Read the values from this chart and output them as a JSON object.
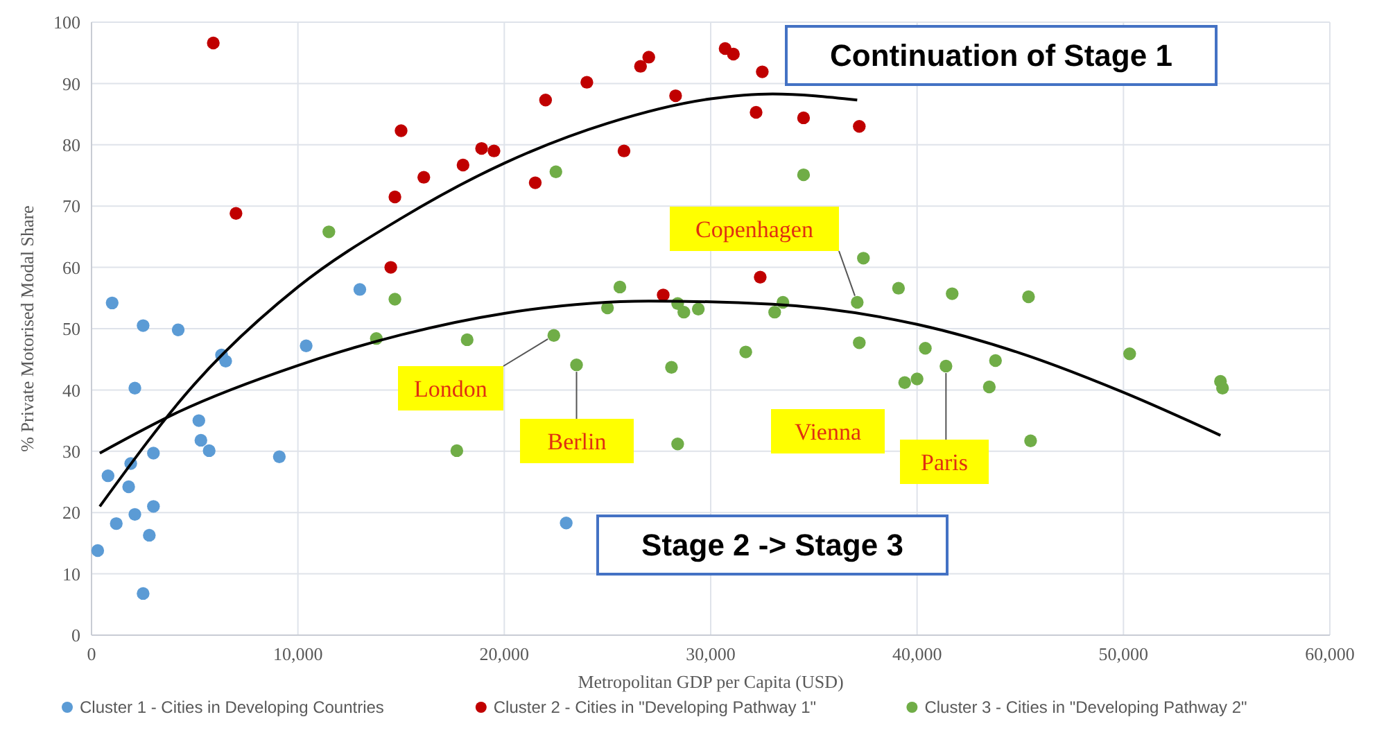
{
  "chart_data": {
    "type": "scatter",
    "xlabel": "Metropolitan  GDP per Capita (USD)",
    "ylabel": "% Private Motorised Modal Share",
    "xlim": [
      0,
      60000
    ],
    "ylim": [
      0,
      100
    ],
    "xticks": [
      0,
      {
        "value": 10000,
        "label": "10,000"
      },
      {
        "value": 20000,
        "label": "20,000"
      },
      {
        "value": 30000,
        "label": "30,000"
      },
      {
        "value": 40000,
        "label": "40,000"
      },
      {
        "value": 50000,
        "label": "50,000"
      },
      {
        "value": 60000,
        "label": "60,000"
      }
    ],
    "yticks": [
      0,
      10,
      20,
      30,
      40,
      50,
      60,
      70,
      80,
      90,
      100
    ],
    "grid": true,
    "legend": "bottom",
    "marker": "circle",
    "series": [
      {
        "name": "Cluster 1 - Cities in Developing Countries",
        "color": "#5b9bd5",
        "x": [
          300,
          800,
          1000,
          1200,
          1800,
          1900,
          2100,
          2100,
          2500,
          2500,
          2800,
          3000,
          3000,
          4200,
          5200,
          5300,
          5700,
          6300,
          6500,
          9100,
          10400,
          13000,
          23000
        ],
        "values": [
          13.8,
          26,
          54.2,
          18.2,
          24.2,
          28,
          40.3,
          19.7,
          50.5,
          6.8,
          16.3,
          29.7,
          21,
          49.8,
          35,
          31.8,
          30.1,
          45.7,
          44.7,
          29.1,
          47.2,
          56.4,
          18.3
        ]
      },
      {
        "name": "Cluster 2 - Cities in \"Developing Pathway 1\"",
        "color": "#c00000",
        "x": [
          5900,
          7000,
          14500,
          14700,
          15000,
          16100,
          18000,
          18900,
          19500,
          21500,
          22000,
          24000,
          25800,
          26600,
          27000,
          27700,
          28300,
          30700,
          31100,
          32200,
          32400,
          32500,
          34500,
          37200
        ],
        "values": [
          96.6,
          68.8,
          60,
          71.5,
          82.3,
          74.7,
          76.7,
          79.4,
          79,
          73.8,
          87.3,
          90.2,
          79,
          92.8,
          94.3,
          55.5,
          88,
          95.7,
          94.8,
          85.3,
          58.4,
          91.9,
          84.4,
          83
        ]
      },
      {
        "name": "Cluster 3 - Cities in \"Developing Pathway 2\"",
        "color": "#70ad47",
        "x": [
          11500,
          13800,
          14700,
          17700,
          18200,
          22400,
          22500,
          23500,
          25000,
          25600,
          28100,
          28400,
          28400,
          28700,
          29400,
          31700,
          33100,
          33500,
          34500,
          37100,
          37200,
          37400,
          39100,
          39400,
          40000,
          40400,
          41400,
          41700,
          43500,
          43800,
          45400,
          45500,
          50300,
          54700,
          54800
        ],
        "values": [
          65.8,
          48.4,
          54.8,
          30.1,
          48.2,
          48.9,
          75.6,
          44.1,
          53.4,
          56.8,
          43.7,
          31.2,
          54.1,
          52.7,
          53.2,
          46.2,
          52.7,
          54.3,
          75.1,
          54.3,
          47.7,
          61.5,
          56.6,
          41.2,
          41.8,
          46.8,
          43.9,
          55.7,
          40.5,
          44.8,
          55.2,
          31.7,
          45.9,
          41.4,
          40.3
        ]
      },
      {
        "type": "line",
        "marker": "none",
        "color": "#000000",
        "x": [
          400,
          5000,
          10000,
          15000,
          20000,
          25000,
          30000,
          33000,
          37100
        ],
        "values": [
          21,
          41,
          56.8,
          68,
          77,
          83.5,
          87.5,
          88.3,
          87.3
        ]
      },
      {
        "type": "line",
        "marker": "none",
        "color": "#000000",
        "x": [
          400,
          4200,
          10000,
          15000,
          20000,
          27000,
          33000,
          40000,
          45000,
          50000,
          54700
        ],
        "values": [
          29.7,
          36.4,
          44,
          49,
          52.5,
          54.5,
          54,
          50.7,
          46,
          39.6,
          32.6
        ]
      }
    ],
    "annotations": [
      {
        "text": "London",
        "x": 22400,
        "y": 48.9
      },
      {
        "text": "Berlin",
        "x": 23500,
        "y": 44.1
      },
      {
        "text": "Copenhagen",
        "x": 37100,
        "y": 54.3
      },
      "Vienna",
      {
        "text": "Paris",
        "x": 41400,
        "y": 43.9
      },
      "Continuation of Stage 1",
      "Stage 2 -> Stage 3"
    ]
  }
}
